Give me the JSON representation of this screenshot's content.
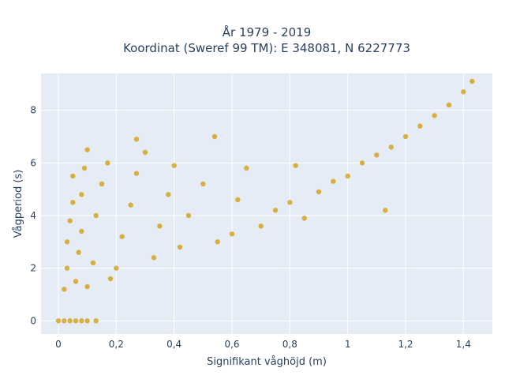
{
  "chart_data": {
    "type": "scatter",
    "title_line1": "År 1979 - 2019",
    "title_line2": "Koordinat (Sweref 99 TM): E 348081, N 6227773",
    "xlabel": "Signifikant våghöjd (m)",
    "ylabel": "Vågperiod (s)",
    "xlim": [
      -0.06,
      1.5
    ],
    "ylim": [
      -0.5,
      9.4
    ],
    "xticks": [
      0,
      0.2,
      0.4,
      0.6,
      0.8,
      1,
      1.2,
      1.4
    ],
    "xtick_labels": [
      "0",
      "0,2",
      "0,4",
      "0,6",
      "0,8",
      "1",
      "1,2",
      "1,4"
    ],
    "yticks": [
      0,
      2,
      4,
      6,
      8
    ],
    "ytick_labels": [
      "0",
      "2",
      "4",
      "6",
      "8"
    ],
    "grid": true,
    "background_color": "#e5ecf6",
    "marker_color": "#d4a520",
    "series": [
      {
        "points": [
          [
            0.02,
            1.2
          ],
          [
            0.03,
            2.0
          ],
          [
            0.03,
            3.0
          ],
          [
            0.04,
            3.8
          ],
          [
            0.05,
            4.5
          ],
          [
            0.05,
            5.5
          ],
          [
            0.06,
            1.5
          ],
          [
            0.07,
            2.6
          ],
          [
            0.08,
            3.4
          ],
          [
            0.08,
            4.8
          ],
          [
            0.09,
            5.8
          ],
          [
            0.1,
            6.5
          ],
          [
            0.1,
            1.3
          ],
          [
            0.12,
            2.2
          ],
          [
            0.13,
            4.0
          ],
          [
            0.15,
            5.2
          ],
          [
            0.17,
            6.0
          ],
          [
            0.18,
            1.6
          ],
          [
            0.2,
            2.0
          ],
          [
            0.22,
            3.2
          ],
          [
            0.25,
            4.4
          ],
          [
            0.27,
            5.6
          ],
          [
            0.3,
            6.4
          ],
          [
            0.33,
            2.4
          ],
          [
            0.35,
            3.6
          ],
          [
            0.38,
            4.8
          ],
          [
            0.4,
            5.9
          ],
          [
            0.42,
            2.8
          ],
          [
            0.45,
            4.0
          ],
          [
            0.5,
            5.2
          ],
          [
            0.55,
            3.0
          ],
          [
            0.6,
            3.3
          ],
          [
            0.62,
            4.6
          ],
          [
            0.65,
            5.8
          ],
          [
            0.7,
            3.6
          ],
          [
            0.75,
            4.2
          ],
          [
            0.8,
            4.5
          ],
          [
            0.82,
            5.9
          ],
          [
            0.85,
            3.9
          ],
          [
            0.9,
            4.9
          ],
          [
            0.95,
            5.3
          ],
          [
            1.0,
            5.5
          ],
          [
            1.05,
            6.0
          ],
          [
            1.1,
            6.3
          ],
          [
            1.15,
            6.6
          ],
          [
            1.2,
            7.0
          ],
          [
            1.25,
            7.4
          ],
          [
            1.3,
            7.8
          ],
          [
            1.35,
            8.2
          ],
          [
            1.4,
            8.7
          ],
          [
            1.43,
            9.1
          ],
          [
            0.27,
            6.9
          ],
          [
            0.54,
            7.0
          ],
          [
            1.13,
            4.2
          ]
        ]
      },
      {
        "points": [
          [
            0.0,
            0.0
          ],
          [
            0.02,
            0.0
          ],
          [
            0.04,
            0.0
          ],
          [
            0.06,
            0.0
          ],
          [
            0.08,
            0.0
          ],
          [
            0.1,
            0.0
          ],
          [
            0.13,
            0.0
          ]
        ]
      }
    ]
  }
}
